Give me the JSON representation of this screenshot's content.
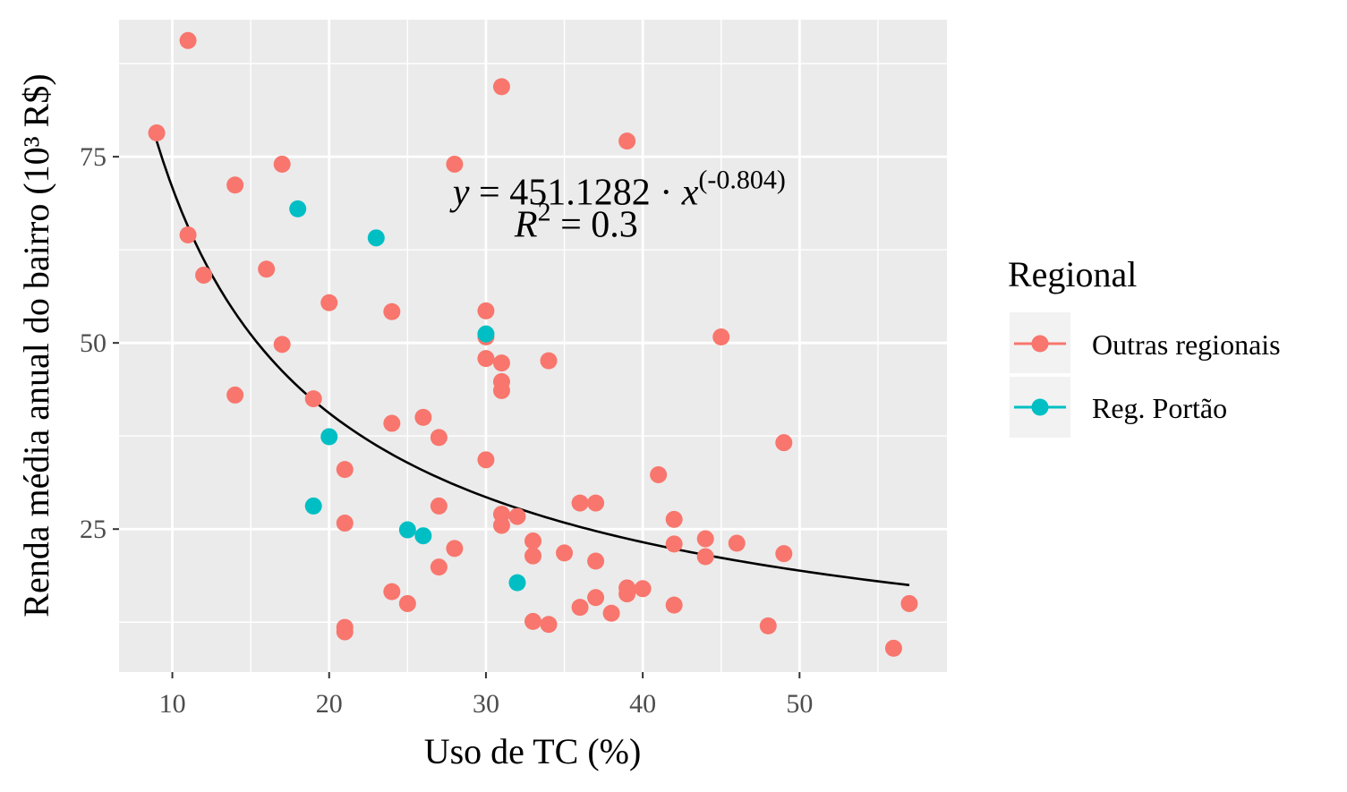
{
  "chart_data": {
    "type": "scatter",
    "title": "",
    "xlabel": "Uso de TC (%)",
    "ylabel": "Renda média anual do bairro (10³ R$)",
    "xlim": [
      6.6,
      59.4
    ],
    "ylim": [
      5.8,
      93.4
    ],
    "x_ticks": [
      10,
      20,
      30,
      40,
      50
    ],
    "y_ticks": [
      25,
      50,
      75
    ],
    "grid": true,
    "legend": {
      "title": "Regional",
      "placement": "right",
      "entries": [
        "Outras regionais",
        "Reg. Portão"
      ]
    },
    "colors": {
      "Outras regionais": "#F8766D",
      "Reg. Portão": "#00BFC4",
      "panel": "#EBEBEB",
      "grid": "#FFFFFF",
      "fit": "#000000"
    },
    "series": [
      {
        "name": "Outras regionais",
        "points": [
          [
            9,
            78.2
          ],
          [
            11,
            90.6
          ],
          [
            11,
            64.5
          ],
          [
            12,
            59.1
          ],
          [
            14,
            71.2
          ],
          [
            14,
            43.0
          ],
          [
            16,
            59.9
          ],
          [
            17,
            74.0
          ],
          [
            17,
            49.8
          ],
          [
            19,
            42.5
          ],
          [
            20,
            55.4
          ],
          [
            21,
            33.0
          ],
          [
            21,
            25.8
          ],
          [
            21,
            11.8
          ],
          [
            21,
            11.2
          ],
          [
            24,
            54.2
          ],
          [
            24,
            39.2
          ],
          [
            24,
            16.6
          ],
          [
            25,
            15.0
          ],
          [
            26,
            40.0
          ],
          [
            27,
            37.3
          ],
          [
            27,
            28.1
          ],
          [
            27,
            19.9
          ],
          [
            28,
            74.0
          ],
          [
            28,
            22.4
          ],
          [
            30,
            54.3
          ],
          [
            30,
            50.8
          ],
          [
            30,
            47.9
          ],
          [
            30,
            34.3
          ],
          [
            31,
            84.4
          ],
          [
            31,
            47.3
          ],
          [
            31,
            44.8
          ],
          [
            31,
            43.6
          ],
          [
            31,
            27.0
          ],
          [
            31,
            25.5
          ],
          [
            32,
            26.7
          ],
          [
            33,
            23.4
          ],
          [
            33,
            21.4
          ],
          [
            33,
            12.6
          ],
          [
            34,
            47.6
          ],
          [
            34,
            12.2
          ],
          [
            35,
            21.8
          ],
          [
            36,
            28.5
          ],
          [
            36,
            14.5
          ],
          [
            37,
            28.5
          ],
          [
            37,
            20.7
          ],
          [
            37,
            15.8
          ],
          [
            38,
            13.7
          ],
          [
            39,
            77.1
          ],
          [
            39,
            17.1
          ],
          [
            39,
            16.3
          ],
          [
            40,
            17.0
          ],
          [
            41,
            32.3
          ],
          [
            42,
            26.3
          ],
          [
            42,
            23.0
          ],
          [
            42,
            14.8
          ],
          [
            44,
            23.7
          ],
          [
            44,
            21.3
          ],
          [
            45,
            50.8
          ],
          [
            46,
            23.1
          ],
          [
            48,
            12.0
          ],
          [
            49,
            36.6
          ],
          [
            49,
            21.7
          ],
          [
            56,
            9.0
          ],
          [
            57,
            15.0
          ]
        ]
      },
      {
        "name": "Reg. Portão",
        "points": [
          [
            18,
            68.0
          ],
          [
            19,
            28.1
          ],
          [
            20,
            37.4
          ],
          [
            23,
            64.1
          ],
          [
            25,
            24.9
          ],
          [
            26,
            24.1
          ],
          [
            30,
            51.2
          ],
          [
            32,
            17.8
          ]
        ]
      }
    ],
    "fit": {
      "model": "power",
      "a": 451.1282,
      "b": -0.804,
      "x_range": [
        9,
        57
      ],
      "annotation": {
        "y_prefix": "y",
        "equals_coef": " = 451.1282 · ",
        "x_var": "x",
        "exponent": "(-0.804)",
        "r_var": "R",
        "r_exponent": "2",
        "r_value": " = 0.3",
        "anchor_x": 38.5,
        "anchor_y": 68.2
      }
    }
  }
}
